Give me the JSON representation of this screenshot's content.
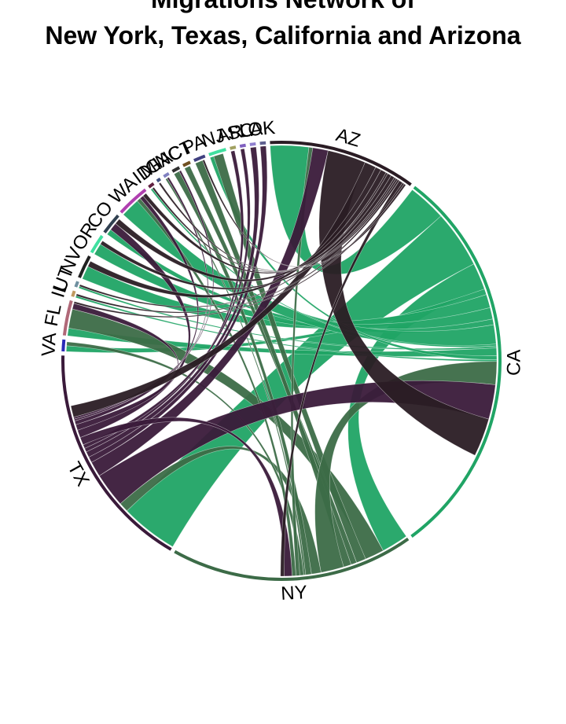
{
  "chart_data": {
    "type": "chord",
    "title_lines": [
      "Migrations Network of",
      "New York, Texas, California and Arizona"
    ],
    "sectors": [
      {
        "id": "AZ",
        "color": "#2a1c24",
        "size": 76
      },
      {
        "id": "CA",
        "color": "#20a465",
        "size": 205
      },
      {
        "id": "NY",
        "color": "#3c6b47",
        "size": 125
      },
      {
        "id": "TX",
        "color": "#3a1a3a",
        "size": 118
      },
      {
        "id": "VA",
        "color": "#2a2ab8",
        "size": 6
      },
      {
        "id": "FL",
        "color": "#b06878",
        "size": 18
      },
      {
        "id": "IL",
        "color": "#c09a60",
        "size": 3
      },
      {
        "id": "UT",
        "color": "#7090a0",
        "size": 3
      },
      {
        "id": "NV",
        "color": "#202020",
        "size": 12
      },
      {
        "id": "OR",
        "color": "#40e0a0",
        "size": 10
      },
      {
        "id": "CO",
        "color": "#304050",
        "size": 11
      },
      {
        "id": "WA",
        "color": "#b040b0",
        "size": 17
      },
      {
        "id": "ID",
        "color": "#602040",
        "size": 3
      },
      {
        "id": "MI",
        "color": "#405080",
        "size": 2
      },
      {
        "id": "GA",
        "color": "#8080c0",
        "size": 3
      },
      {
        "id": "NC",
        "color": "#303030",
        "size": 4
      },
      {
        "id": "CT",
        "color": "#705020",
        "size": 4
      },
      {
        "id": "PA",
        "color": "#404080",
        "size": 6
      },
      {
        "id": "NJ",
        "color": "#40e0a0",
        "size": 9
      },
      {
        "id": "AR",
        "color": "#a0a060",
        "size": 3
      },
      {
        "id": "SC",
        "color": "#8060c0",
        "size": 3
      },
      {
        "id": "LA",
        "color": "#9080d0",
        "size": 3
      },
      {
        "id": "OK",
        "color": "#606090",
        "size": 3
      }
    ],
    "flows": [
      {
        "from": "CA",
        "to": "AZ",
        "value": 20
      },
      {
        "from": "CA",
        "to": "TX",
        "value": 30
      },
      {
        "from": "CA",
        "to": "NY",
        "value": 14
      },
      {
        "from": "CA",
        "to": "VA",
        "value": 3
      },
      {
        "from": "CA",
        "to": "NV",
        "value": 7
      },
      {
        "from": "CA",
        "to": "OR",
        "value": 6
      },
      {
        "from": "CA",
        "to": "CO",
        "value": 3
      },
      {
        "from": "CA",
        "to": "WA",
        "value": 10
      },
      {
        "from": "CA",
        "to": "ID",
        "value": 1
      },
      {
        "from": "CA",
        "to": "UT",
        "value": 1
      },
      {
        "from": "CA",
        "to": "FL",
        "value": 4
      },
      {
        "from": "CA",
        "to": "NJ",
        "value": 2
      },
      {
        "from": "CA",
        "to": "IL",
        "value": 1
      },
      {
        "from": "NY",
        "to": "FL",
        "value": 10
      },
      {
        "from": "NY",
        "to": "NJ",
        "value": 5
      },
      {
        "from": "NY",
        "to": "CT",
        "value": 3
      },
      {
        "from": "NY",
        "to": "PA",
        "value": 4
      },
      {
        "from": "NY",
        "to": "CA",
        "value": 12
      },
      {
        "from": "NY",
        "to": "TX",
        "value": 5
      },
      {
        "from": "NY",
        "to": "NC",
        "value": 3
      },
      {
        "from": "NY",
        "to": "GA",
        "value": 1
      },
      {
        "from": "NY",
        "to": "VA",
        "value": 2
      },
      {
        "from": "NY",
        "to": "AZ",
        "value": 2
      },
      {
        "from": "NY",
        "to": "WA",
        "value": 2
      },
      {
        "from": "TX",
        "to": "CA",
        "value": 18
      },
      {
        "from": "TX",
        "to": "AZ",
        "value": 8
      },
      {
        "from": "TX",
        "to": "OK",
        "value": 3
      },
      {
        "from": "TX",
        "to": "LA",
        "value": 3
      },
      {
        "from": "TX",
        "to": "AR",
        "value": 2
      },
      {
        "from": "TX",
        "to": "SC",
        "value": 2
      },
      {
        "from": "TX",
        "to": "NY",
        "value": 4
      },
      {
        "from": "TX",
        "to": "CO",
        "value": 4
      },
      {
        "from": "TX",
        "to": "FL",
        "value": 3
      },
      {
        "from": "TX",
        "to": "WA",
        "value": 2
      },
      {
        "from": "TX",
        "to": "GA",
        "value": 1
      },
      {
        "from": "TX",
        "to": "NC",
        "value": 1
      },
      {
        "from": "AZ",
        "to": "CA",
        "value": 20
      },
      {
        "from": "AZ",
        "to": "TX",
        "value": 6
      },
      {
        "from": "AZ",
        "to": "NV",
        "value": 3
      },
      {
        "from": "AZ",
        "to": "CO",
        "value": 3
      },
      {
        "from": "AZ",
        "to": "UT",
        "value": 1
      },
      {
        "from": "AZ",
        "to": "WA",
        "value": 2
      },
      {
        "from": "AZ",
        "to": "OR",
        "value": 2
      },
      {
        "from": "AZ",
        "to": "ID",
        "value": 1
      },
      {
        "from": "AZ",
        "to": "MI",
        "value": 1
      },
      {
        "from": "AZ",
        "to": "IL",
        "value": 1
      },
      {
        "from": "AZ",
        "to": "NY",
        "value": 2
      },
      {
        "from": "AZ",
        "to": "FL",
        "value": 1
      },
      {
        "from": "AZ",
        "to": "PA",
        "value": 1
      }
    ]
  }
}
